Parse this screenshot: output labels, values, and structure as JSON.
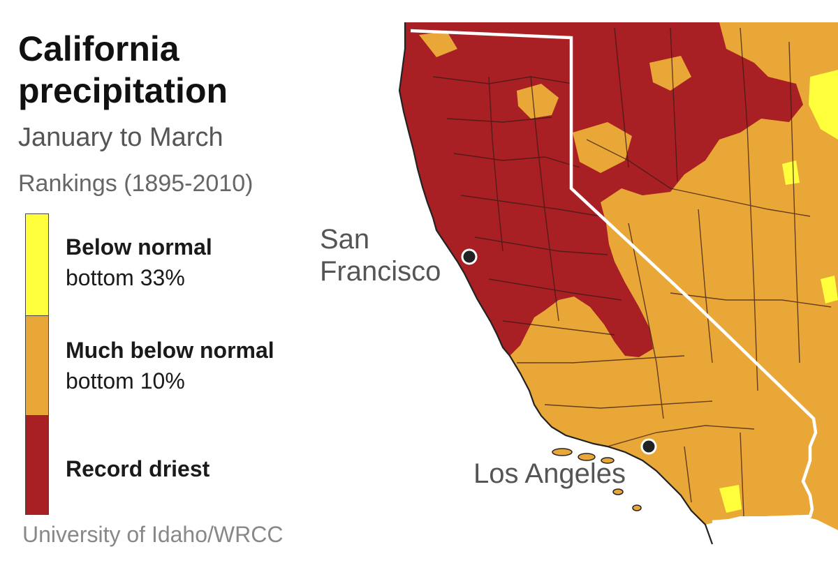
{
  "header": {
    "title": "California precipitation",
    "subtitle": "January to March",
    "rankings": "Rankings (1895-2010)"
  },
  "legend": {
    "items": [
      {
        "label": "Below normal",
        "detail": "bottom 33%",
        "color": "#ffff3c"
      },
      {
        "label": "Much below normal",
        "detail": "bottom 10%",
        "color": "#e9a737"
      },
      {
        "label": "Record driest",
        "detail": "",
        "color": "#a81f24"
      }
    ]
  },
  "map": {
    "cities": [
      {
        "name": "San Francisco",
        "display": [
          "San",
          "Francisco"
        ]
      },
      {
        "name": "Los Angeles",
        "display": [
          "Los Angeles"
        ]
      }
    ],
    "colors": {
      "record_driest": "#a81f24",
      "much_below": "#e9a737",
      "below": "#ffff3c",
      "ocean": "#ffffff",
      "state_border": "#ffffff",
      "county_lines": "#3b1a14"
    }
  },
  "credit": "University of Idaho/WRCC"
}
